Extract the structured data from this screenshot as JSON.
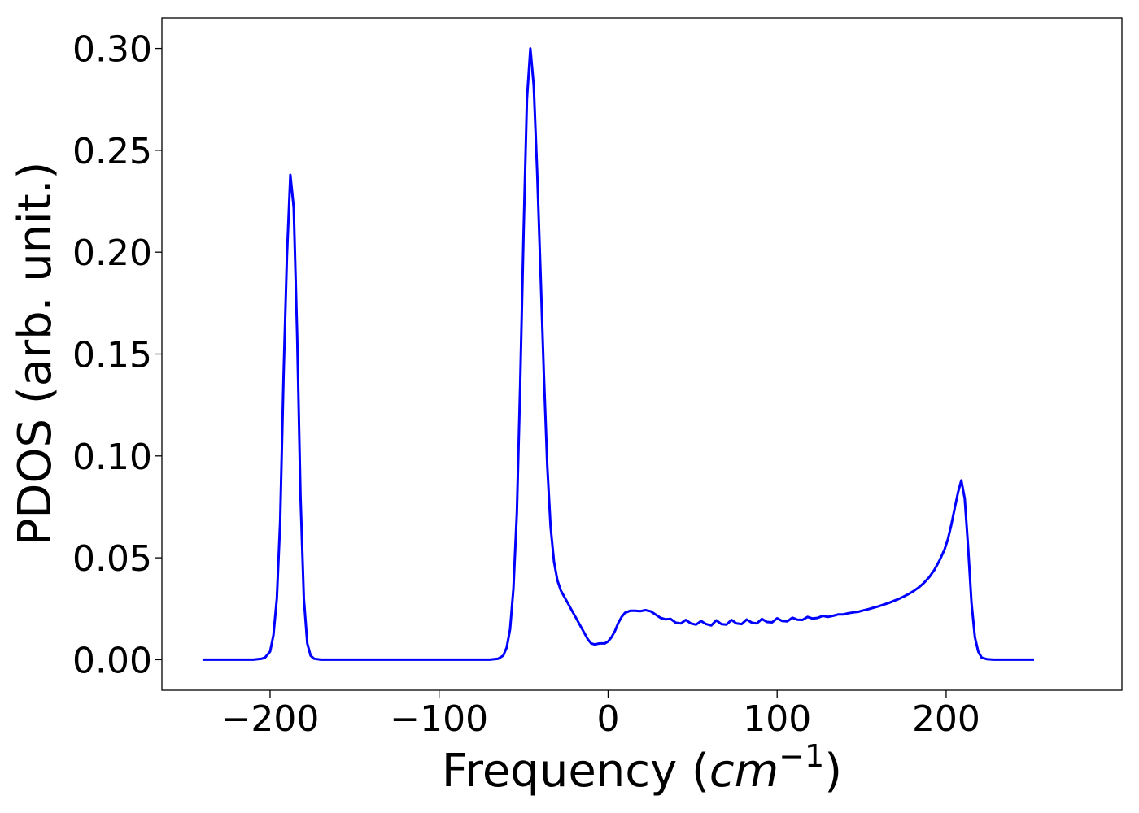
{
  "chart_data": {
    "type": "line",
    "title": "",
    "xlabel": "Frequency (",
    "xlabel_math": "cm",
    "xlabel_sup": "−1",
    "xlabel_close": ")",
    "ylabel": "PDOS (arb. unit.)",
    "xlim": [
      -264,
      304
    ],
    "ylim": [
      -0.015,
      0.315
    ],
    "xticks": [
      -200,
      -100,
      0,
      100,
      200
    ],
    "xtick_labels": [
      "−200",
      "−100",
      "0",
      "100",
      "200"
    ],
    "yticks": [
      0.0,
      0.05,
      0.1,
      0.15,
      0.2,
      0.25,
      0.3
    ],
    "ytick_labels": [
      "0.00",
      "0.05",
      "0.10",
      "0.15",
      "0.20",
      "0.25",
      "0.30"
    ],
    "grid": false,
    "legend": "none",
    "series": [
      {
        "color": "#0000ff",
        "points": [
          [
            -240,
            0.0
          ],
          [
            -210,
            0.0
          ],
          [
            -205,
            0.0005
          ],
          [
            -203,
            0.001
          ],
          [
            -200,
            0.004
          ],
          [
            -198,
            0.012
          ],
          [
            -196,
            0.03
          ],
          [
            -194,
            0.068
          ],
          [
            -192,
            0.14
          ],
          [
            -190,
            0.198
          ],
          [
            -188,
            0.238
          ],
          [
            -186,
            0.222
          ],
          [
            -184,
            0.16
          ],
          [
            -182,
            0.08
          ],
          [
            -180,
            0.03
          ],
          [
            -178,
            0.008
          ],
          [
            -176,
            0.002
          ],
          [
            -174,
            0.0005
          ],
          [
            -170,
            0.0
          ],
          [
            -70,
            0.0
          ],
          [
            -65,
            0.0005
          ],
          [
            -62,
            0.002
          ],
          [
            -60,
            0.006
          ],
          [
            -58,
            0.015
          ],
          [
            -56,
            0.035
          ],
          [
            -54,
            0.072
          ],
          [
            -52,
            0.135
          ],
          [
            -50,
            0.21
          ],
          [
            -48,
            0.275
          ],
          [
            -46,
            0.3
          ],
          [
            -44,
            0.282
          ],
          [
            -42,
            0.24
          ],
          [
            -40,
            0.19
          ],
          [
            -38,
            0.14
          ],
          [
            -36,
            0.095
          ],
          [
            -34,
            0.065
          ],
          [
            -32,
            0.048
          ],
          [
            -30,
            0.039
          ],
          [
            -28,
            0.034
          ],
          [
            -26,
            0.031
          ],
          [
            -24,
            0.028
          ],
          [
            -22,
            0.025
          ],
          [
            -20,
            0.022
          ],
          [
            -18,
            0.019
          ],
          [
            -16,
            0.016
          ],
          [
            -14,
            0.013
          ],
          [
            -12,
            0.01
          ],
          [
            -10,
            0.008
          ],
          [
            -8,
            0.0075
          ],
          [
            -5,
            0.008
          ],
          [
            -2,
            0.008
          ],
          [
            0,
            0.009
          ],
          [
            2,
            0.011
          ],
          [
            4,
            0.014
          ],
          [
            6,
            0.018
          ],
          [
            8,
            0.021
          ],
          [
            10,
            0.023
          ],
          [
            13,
            0.024
          ],
          [
            16,
            0.024
          ],
          [
            19,
            0.0238
          ],
          [
            22,
            0.0243
          ],
          [
            25,
            0.0238
          ],
          [
            28,
            0.0222
          ],
          [
            31,
            0.0205
          ],
          [
            34,
            0.0198
          ],
          [
            37,
            0.02
          ],
          [
            40,
            0.0182
          ],
          [
            43,
            0.0178
          ],
          [
            46,
            0.0195
          ],
          [
            49,
            0.0178
          ],
          [
            52,
            0.0172
          ],
          [
            55,
            0.019
          ],
          [
            58,
            0.0175
          ],
          [
            61,
            0.0168
          ],
          [
            64,
            0.0193
          ],
          [
            67,
            0.0175
          ],
          [
            70,
            0.0172
          ],
          [
            73,
            0.0195
          ],
          [
            76,
            0.0178
          ],
          [
            79,
            0.0175
          ],
          [
            82,
            0.0197
          ],
          [
            85,
            0.0182
          ],
          [
            88,
            0.0178
          ],
          [
            91,
            0.02
          ],
          [
            94,
            0.0185
          ],
          [
            97,
            0.0183
          ],
          [
            100,
            0.0203
          ],
          [
            103,
            0.019
          ],
          [
            106,
            0.0188
          ],
          [
            109,
            0.0206
          ],
          [
            112,
            0.0196
          ],
          [
            115,
            0.0195
          ],
          [
            118,
            0.021
          ],
          [
            121,
            0.0202
          ],
          [
            124,
            0.0205
          ],
          [
            127,
            0.0215
          ],
          [
            130,
            0.021
          ],
          [
            133,
            0.0215
          ],
          [
            136,
            0.0222
          ],
          [
            139,
            0.0222
          ],
          [
            142,
            0.0228
          ],
          [
            145,
            0.0232
          ],
          [
            148,
            0.0235
          ],
          [
            151,
            0.0242
          ],
          [
            154,
            0.0248
          ],
          [
            157,
            0.0255
          ],
          [
            160,
            0.0262
          ],
          [
            163,
            0.027
          ],
          [
            166,
            0.0278
          ],
          [
            169,
            0.0288
          ],
          [
            172,
            0.0298
          ],
          [
            175,
            0.031
          ],
          [
            178,
            0.0323
          ],
          [
            181,
            0.0338
          ],
          [
            184,
            0.0356
          ],
          [
            187,
            0.0378
          ],
          [
            190,
            0.0405
          ],
          [
            193,
            0.044
          ],
          [
            196,
            0.0485
          ],
          [
            199,
            0.054
          ],
          [
            201,
            0.059
          ],
          [
            203,
            0.066
          ],
          [
            205,
            0.074
          ],
          [
            207,
            0.082
          ],
          [
            209,
            0.088
          ],
          [
            211,
            0.079
          ],
          [
            213,
            0.055
          ],
          [
            215,
            0.028
          ],
          [
            217,
            0.011
          ],
          [
            219,
            0.004
          ],
          [
            221,
            0.001
          ],
          [
            224,
            0.0003
          ],
          [
            228,
            0.0
          ],
          [
            252,
            0.0
          ]
        ]
      }
    ]
  }
}
